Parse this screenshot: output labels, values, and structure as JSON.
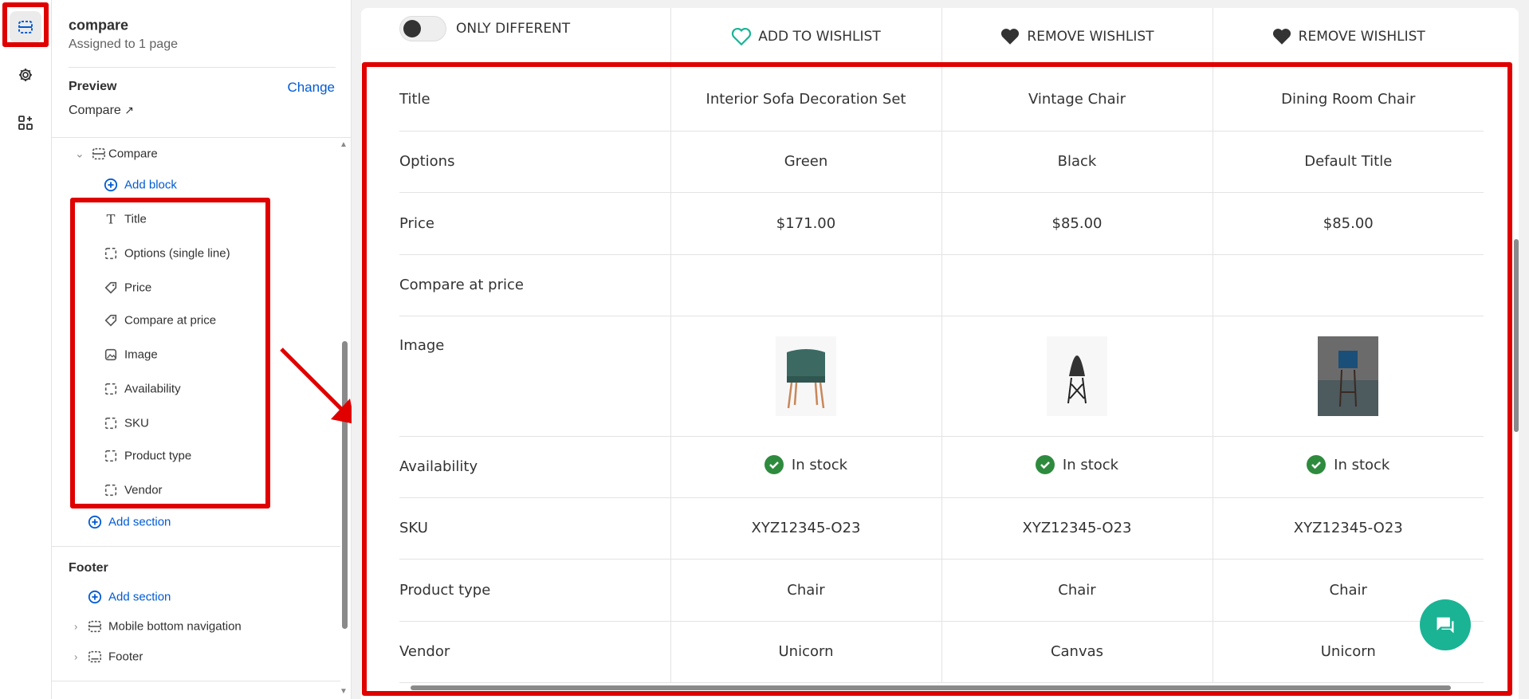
{
  "rail": {
    "items": [
      {
        "icon": "sections-icon",
        "active": true
      },
      {
        "icon": "gear-icon"
      },
      {
        "icon": "apps-add-icon"
      }
    ]
  },
  "panel": {
    "template_name": "compare",
    "assigned": "Assigned to 1 page",
    "preview_label": "Preview",
    "change_label": "Change",
    "preview_page": "Compare",
    "section_name": "Compare",
    "add_block": "Add block",
    "blocks": [
      {
        "label": "Title",
        "icon": "text-icon"
      },
      {
        "label": "Options (single line)",
        "icon": "block-icon"
      },
      {
        "label": "Price",
        "icon": "price-tag-icon"
      },
      {
        "label": "Compare at price",
        "icon": "price-tag-icon"
      },
      {
        "label": "Image",
        "icon": "image-icon"
      },
      {
        "label": "Availability",
        "icon": "block-icon"
      },
      {
        "label": "SKU",
        "icon": "block-icon"
      },
      {
        "label": "Product type",
        "icon": "block-icon"
      },
      {
        "label": "Vendor",
        "icon": "block-icon"
      }
    ],
    "add_section": "Add section",
    "footer_group": "Footer",
    "footer_add_section": "Add section",
    "footer_sections": [
      "Mobile bottom navigation",
      "Footer"
    ]
  },
  "compare": {
    "toggle_label": "ONLY DIFFERENT",
    "toggle_on": false,
    "wishlist": [
      {
        "label": "ADD TO WISHLIST",
        "icon": "heart-outline-icon"
      },
      {
        "label": "REMOVE WISHLIST",
        "icon": "heart-filled-icon"
      },
      {
        "label": "REMOVE WISHLIST",
        "icon": "heart-filled-icon"
      }
    ],
    "rows": [
      {
        "label": "Title",
        "values": [
          "Interior Sofa Decoration Set",
          "Vintage Chair",
          "Dining Room Chair"
        ]
      },
      {
        "label": "Options",
        "values": [
          "Green",
          "Black",
          "Default Title"
        ]
      },
      {
        "label": "Price",
        "values": [
          "$171.00",
          "$85.00",
          "$85.00"
        ]
      },
      {
        "label": "Compare at price",
        "values": [
          "",
          "",
          ""
        ]
      },
      {
        "label": "Image",
        "values": [
          "",
          "",
          ""
        ]
      },
      {
        "label": "Availability",
        "values": [
          "In stock",
          "In stock",
          "In stock"
        ]
      },
      {
        "label": "SKU",
        "values": [
          "XYZ12345-O23",
          "XYZ12345-O23",
          "XYZ12345-O23"
        ]
      },
      {
        "label": "Product type",
        "values": [
          "Chair",
          "Chair",
          "Chair"
        ]
      },
      {
        "label": "Vendor",
        "values": [
          "Unicorn",
          "Canvas",
          "Unicorn"
        ]
      }
    ]
  },
  "colors": {
    "accent": "#005bd3",
    "annotation": "#e00000",
    "stock": "#2e8b3e",
    "chat": "#1ab394",
    "wishlist_outline": "#1ab394"
  }
}
